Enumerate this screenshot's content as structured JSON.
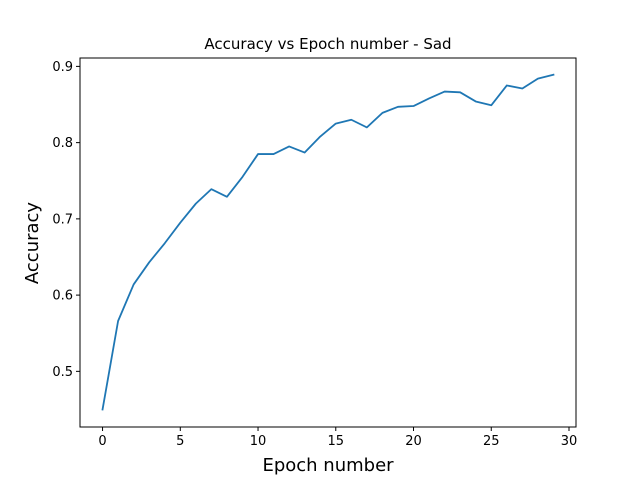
{
  "chart_data": {
    "type": "line",
    "title": "Accuracy vs Epoch number - Sad",
    "xlabel": "Epoch number",
    "ylabel": "Accuracy",
    "xlim": [
      -1.45,
      30.45
    ],
    "ylim": [
      0.427,
      0.911
    ],
    "x_ticks": [
      0,
      5,
      10,
      15,
      20,
      25,
      30
    ],
    "y_ticks": [
      0.5,
      0.6,
      0.7,
      0.8,
      0.9
    ],
    "grid": false,
    "series": [
      {
        "color": "#1f77b4",
        "x": [
          0,
          1,
          2,
          3,
          4,
          5,
          6,
          7,
          8,
          9,
          10,
          11,
          12,
          13,
          14,
          15,
          16,
          17,
          18,
          19,
          20,
          21,
          22,
          23,
          24,
          25,
          26,
          27,
          28,
          29
        ],
        "y": [
          0.45,
          0.566,
          0.614,
          0.643,
          0.668,
          0.695,
          0.72,
          0.739,
          0.729,
          0.755,
          0.785,
          0.785,
          0.795,
          0.787,
          0.808,
          0.825,
          0.83,
          0.82,
          0.839,
          0.847,
          0.848,
          0.858,
          0.867,
          0.866,
          0.854,
          0.849,
          0.875,
          0.871,
          0.884,
          0.889
        ]
      }
    ]
  }
}
